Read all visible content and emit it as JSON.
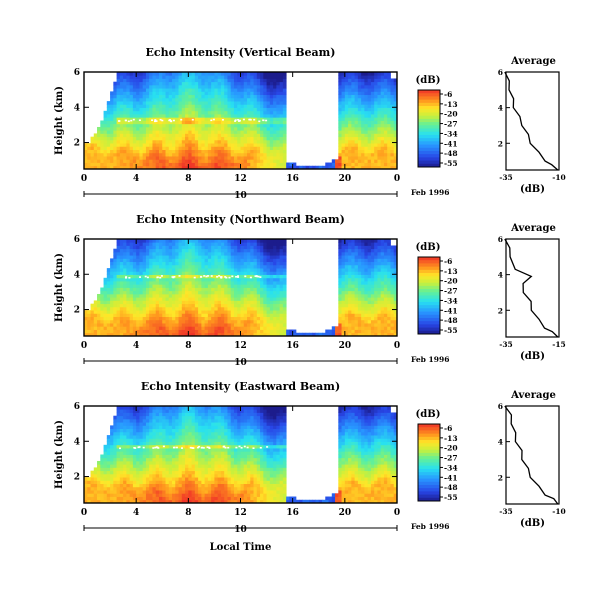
{
  "chart_data": [
    {
      "type": "heatmap",
      "title": "Echo Intensity (Vertical Beam)",
      "ylabel": "Height (km)",
      "y_tick_labels": [
        "6",
        "4",
        "2"
      ],
      "x_tick_labels": [
        "0",
        "4",
        "8",
        "12",
        "16",
        "20",
        "0"
      ],
      "xlim": [
        0,
        24
      ],
      "ylim": [
        0.5,
        6.0
      ],
      "date_label": "10",
      "month_label": "Feb 1996",
      "colorbar": {
        "unit": "(dB)",
        "ticks": [
          "-6",
          "-13",
          "-20",
          "-27",
          "-34",
          "-41",
          "-48",
          "-55"
        ]
      },
      "gap_hours": [
        15.5,
        19.5
      ],
      "melting_layer_km": 3.3,
      "profile": {
        "title": "Average",
        "xlabel": "(dB)",
        "x_tick_labels": [
          "-35",
          "-10"
        ],
        "xlim": [
          -35,
          -10
        ],
        "y_tick_labels": [
          "6",
          "4",
          "2"
        ],
        "heights": [
          0.5,
          0.8,
          1.0,
          1.5,
          2.0,
          2.5,
          3.0,
          3.5,
          4.0,
          4.5,
          5.0,
          5.5,
          6.0
        ],
        "values": [
          -10,
          -14,
          -16,
          -20,
          -23,
          -25,
          -27,
          -29,
          -31,
          -32,
          -33,
          -34,
          -35
        ]
      }
    },
    {
      "type": "heatmap",
      "title": "Echo Intensity (Northward Beam)",
      "ylabel": "Height (km)",
      "y_tick_labels": [
        "6",
        "4",
        "2"
      ],
      "x_tick_labels": [
        "0",
        "4",
        "8",
        "12",
        "16",
        "20",
        "0"
      ],
      "xlim": [
        0,
        24
      ],
      "ylim": [
        0.5,
        6.0
      ],
      "date_label": "10",
      "month_label": "Feb 1996",
      "colorbar": {
        "unit": "(dB)",
        "ticks": [
          "-6",
          "-13",
          "-20",
          "-27",
          "-34",
          "-41",
          "-48",
          "-55"
        ]
      },
      "gap_hours": [
        15.5,
        19.5
      ],
      "melting_layer_km": 3.9,
      "profile": {
        "title": "Average",
        "xlabel": "(dB)",
        "x_tick_labels": [
          "-35",
          "-15"
        ],
        "xlim": [
          -35,
          -15
        ],
        "y_tick_labels": [
          "6",
          "4",
          "2"
        ],
        "heights": [
          0.5,
          0.8,
          1.0,
          1.5,
          2.0,
          2.5,
          3.0,
          3.5,
          3.9,
          4.3,
          5.0,
          5.5,
          6.0
        ],
        "values": [
          -15,
          -18,
          -20,
          -23,
          -25,
          -26,
          -28,
          -29,
          -25,
          -32,
          -33,
          -34,
          -35
        ]
      }
    },
    {
      "type": "heatmap",
      "title": "Echo Intensity (Eastward Beam)",
      "ylabel": "Height (km)",
      "y_tick_labels": [
        "6",
        "4",
        "2"
      ],
      "x_tick_labels": [
        "0",
        "4",
        "8",
        "12",
        "16",
        "20",
        "0"
      ],
      "xlim": [
        0,
        24
      ],
      "ylim": [
        0.5,
        6.0
      ],
      "date_label": "10",
      "month_label": "Feb 1996",
      "xlabel": "Local Time",
      "colorbar": {
        "unit": "(dB)",
        "ticks": [
          "-6",
          "-13",
          "-20",
          "-27",
          "-34",
          "-41",
          "-48",
          "-55"
        ]
      },
      "gap_hours": [
        15.5,
        19.5
      ],
      "melting_layer_km": 3.7,
      "profile": {
        "title": "Average",
        "xlabel": "(dB)",
        "x_tick_labels": [
          "-35",
          "-10"
        ],
        "xlim": [
          -35,
          -10
        ],
        "y_tick_labels": [
          "6",
          "4",
          "2"
        ],
        "heights": [
          0.5,
          0.8,
          1.0,
          1.5,
          2.0,
          2.5,
          3.0,
          3.5,
          4.0,
          4.5,
          5.0,
          5.5,
          6.0
        ],
        "values": [
          -10,
          -13,
          -16,
          -20,
          -23,
          -25,
          -27,
          -28,
          -30,
          -31,
          -32,
          -33,
          -35
        ]
      }
    }
  ]
}
